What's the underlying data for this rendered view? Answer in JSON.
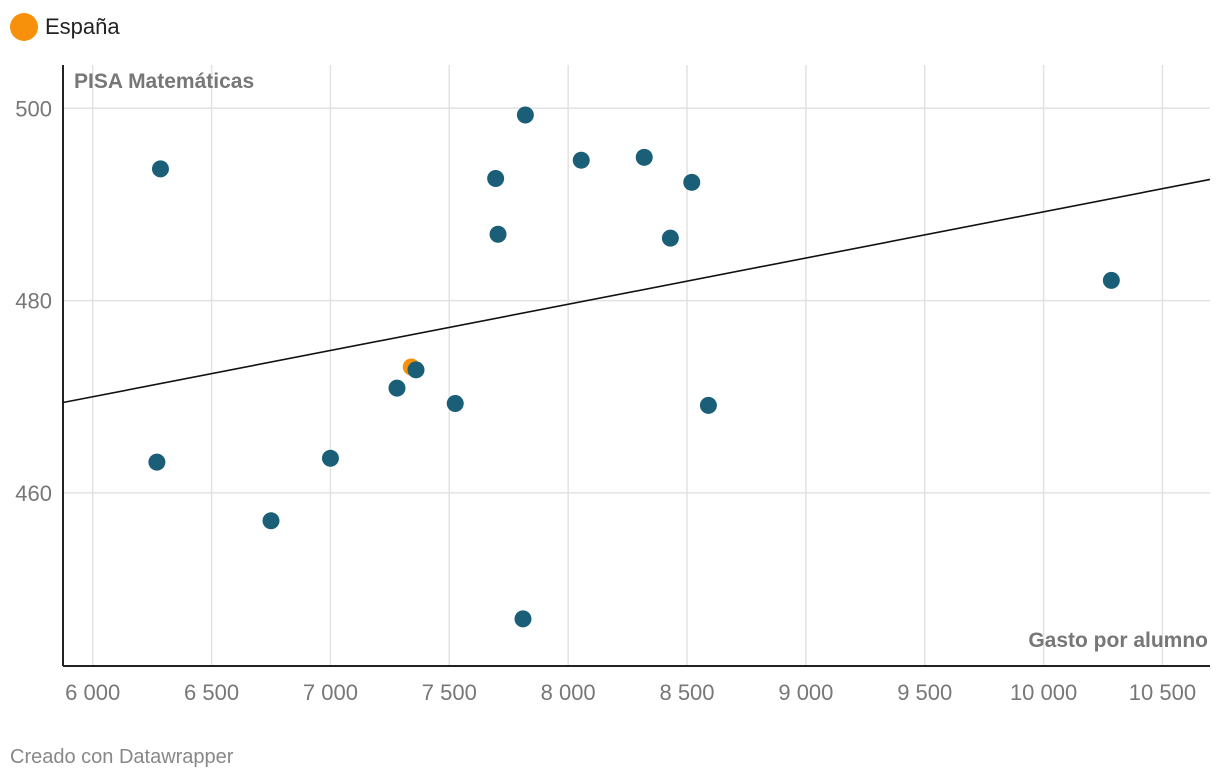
{
  "legend": {
    "label": "España",
    "color": "#f7910b"
  },
  "footer": {
    "credit": "Creado con Datawrapper"
  },
  "chart_data": {
    "type": "scatter",
    "title": "",
    "ylabel": "PISA Matemáticas",
    "xlabel": "Gasto por alumno",
    "xlim": [
      5875,
      10700
    ],
    "ylim": [
      442,
      504.5
    ],
    "x_ticks": [
      {
        "value": 6000,
        "label": "6 000"
      },
      {
        "value": 6500,
        "label": "6 500"
      },
      {
        "value": 7000,
        "label": "7 000"
      },
      {
        "value": 7500,
        "label": "7 500"
      },
      {
        "value": 8000,
        "label": "8 000"
      },
      {
        "value": 8500,
        "label": "8 500"
      },
      {
        "value": 9000,
        "label": "9 000"
      },
      {
        "value": 9500,
        "label": "9 500"
      },
      {
        "value": 10000,
        "label": "10 000"
      },
      {
        "value": 10500,
        "label": "10 500"
      }
    ],
    "y_ticks": [
      {
        "value": 460,
        "label": "460"
      },
      {
        "value": 480,
        "label": "480"
      },
      {
        "value": 500,
        "label": "500"
      }
    ],
    "grid": true,
    "colors": {
      "points": "#1a5e78",
      "highlight": "#f7910b",
      "trend": "#111111",
      "grid": "#e2e2e2"
    },
    "points": [
      {
        "x": 6285,
        "y": 493.7
      },
      {
        "x": 6270,
        "y": 463.2
      },
      {
        "x": 6750,
        "y": 457.1
      },
      {
        "x": 7000,
        "y": 463.6
      },
      {
        "x": 7280,
        "y": 470.9
      },
      {
        "x": 7360,
        "y": 472.8
      },
      {
        "x": 7525,
        "y": 469.3
      },
      {
        "x": 7695,
        "y": 492.7
      },
      {
        "x": 7705,
        "y": 486.9
      },
      {
        "x": 7820,
        "y": 499.3
      },
      {
        "x": 7810,
        "y": 446.9
      },
      {
        "x": 8055,
        "y": 494.6
      },
      {
        "x": 8320,
        "y": 494.9
      },
      {
        "x": 8430,
        "y": 486.5
      },
      {
        "x": 8520,
        "y": 492.3
      },
      {
        "x": 8590,
        "y": 469.1
      },
      {
        "x": 10285,
        "y": 482.1
      }
    ],
    "highlight_point": {
      "name": "España",
      "x": 7340,
      "y": 473.1
    },
    "trendline": {
      "x": [
        5875,
        10700
      ],
      "y": [
        469.4,
        492.6
      ]
    }
  }
}
